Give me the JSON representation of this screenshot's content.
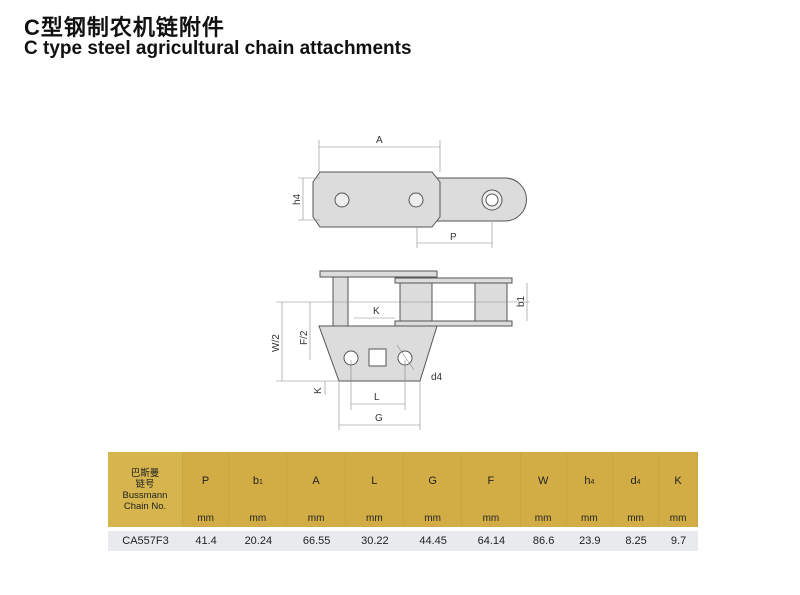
{
  "title_cn": "C型钢制农机链附件",
  "title_en": "C type steel agricultural chain attachments",
  "drawing_labels": {
    "A": "A",
    "h4": "h4",
    "P": "P",
    "b1": "b1",
    "K_top": "K",
    "F2": "F/2",
    "W2": "W/2",
    "d4": "d4",
    "K_side": "K",
    "L": "L",
    "G": "G"
  },
  "table": {
    "first_header": [
      "巴斯曼",
      "链号",
      "Bussmann",
      "Chain No."
    ],
    "columns": [
      {
        "main": "P",
        "sub": ""
      },
      {
        "main": "b",
        "sub": "1"
      },
      {
        "main": "A",
        "sub": ""
      },
      {
        "main": "L",
        "sub": ""
      },
      {
        "main": "G",
        "sub": ""
      },
      {
        "main": "F",
        "sub": ""
      },
      {
        "main": "W",
        "sub": ""
      },
      {
        "main": "h",
        "sub": "4"
      },
      {
        "main": "d",
        "sub": "4"
      },
      {
        "main": "K",
        "sub": ""
      }
    ],
    "units": [
      "mm",
      "mm",
      "mm",
      "mm",
      "mm",
      "mm",
      "mm",
      "mm",
      "mm",
      "mm"
    ],
    "rows": [
      {
        "chain_no": "CA557F3",
        "values": [
          "41.4",
          "20.24",
          "66.55",
          "30.22",
          "44.45",
          "64.14",
          "86.6",
          "23.9",
          "8.25",
          "9.7"
        ]
      }
    ]
  },
  "colors": {
    "header_gold": "#d2ad45",
    "row_gray": "#e8eaee",
    "part_fill": "#dcdcdc"
  }
}
